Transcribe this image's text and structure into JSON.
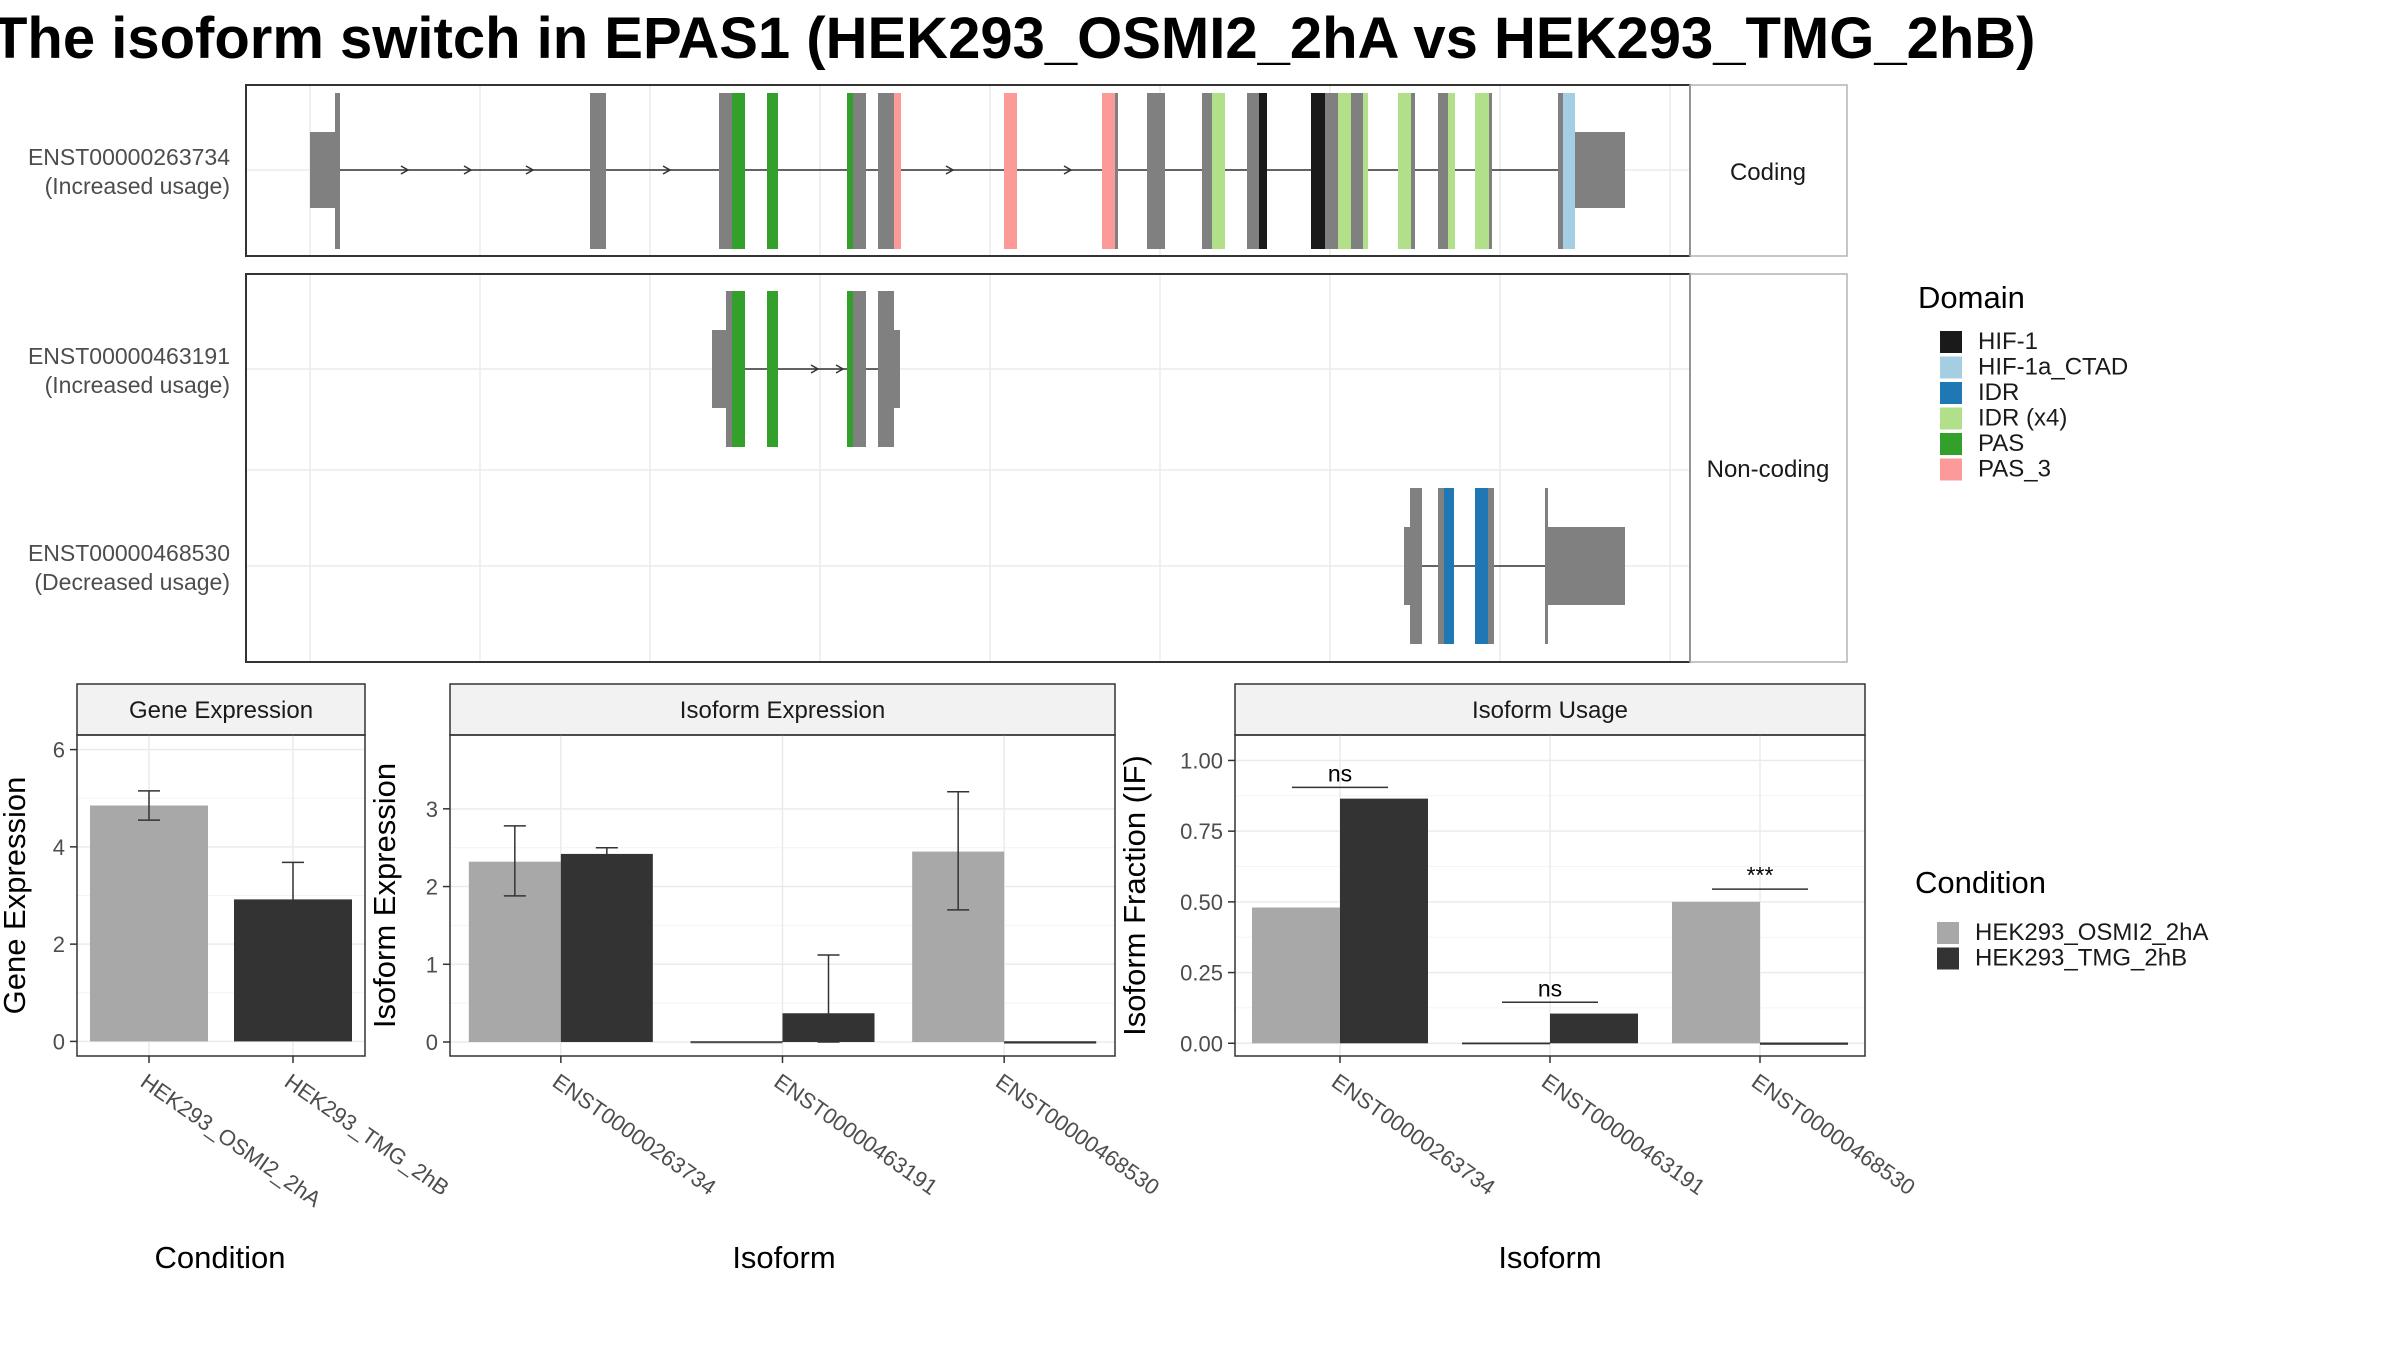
{
  "title": "The isoform switch in EPAS1 (HEK293_OSMI2_2hA vs HEK293_TMG_2hB)",
  "transcripts": [
    {
      "id": "ENST00000263734",
      "usage": "(Increased usage)"
    },
    {
      "id": "ENST00000463191",
      "usage": "(Increased usage)"
    },
    {
      "id": "ENST00000468530",
      "usage": "(Decreased usage)"
    }
  ],
  "facets": {
    "coding": "Coding",
    "noncoding": "Non-coding"
  },
  "domain_legend": {
    "title": "Domain",
    "items": [
      {
        "label": "HIF-1",
        "color": "#1a1a1a"
      },
      {
        "label": "HIF-1a_CTAD",
        "color": "#a6cee3"
      },
      {
        "label": "IDR",
        "color": "#1f78b4"
      },
      {
        "label": "IDR (x4)",
        "color": "#b2df8a"
      },
      {
        "label": "PAS",
        "color": "#33a02c"
      },
      {
        "label": "PAS_3",
        "color": "#fb9a99"
      }
    ]
  },
  "condition_legend": {
    "title": "Condition",
    "items": [
      {
        "label": "HEK293_OSMI2_2hA",
        "color": "#a8a8a8"
      },
      {
        "label": "HEK293_TMG_2hB",
        "color": "#333333"
      }
    ]
  },
  "chart_data": [
    {
      "type": "bar",
      "title": "Gene Expression",
      "xlabel": "Condition",
      "ylabel": "Gene Expression",
      "categories": [
        "HEK293_OSMI2_2hA",
        "HEK293_TMG_2hB"
      ],
      "values": [
        4.85,
        2.92
      ],
      "errors": [
        [
          4.55,
          5.15
        ],
        [
          2.15,
          3.68
        ]
      ],
      "yticks": [
        0,
        2,
        4,
        6
      ],
      "ylim": [
        -0.3,
        6.3
      ]
    },
    {
      "type": "bar",
      "title": "Isoform Expression",
      "xlabel": "Isoform",
      "ylabel": "Isoform Expression",
      "categories": [
        "ENST00000263734",
        "ENST00000463191",
        "ENST00000468530"
      ],
      "series": [
        {
          "name": "HEK293_OSMI2_2hA",
          "values": [
            2.32,
            0.0,
            2.45
          ],
          "errors": [
            [
              1.88,
              2.78
            ],
            [
              0,
              0
            ],
            [
              1.7,
              3.22
            ]
          ]
        },
        {
          "name": "HEK293_TMG_2hB",
          "values": [
            2.42,
            0.37,
            0.0
          ],
          "errors": [
            [
              2.35,
              2.5
            ],
            [
              0,
              1.12
            ],
            [
              0,
              0
            ]
          ]
        }
      ],
      "yticks": [
        0,
        1,
        2,
        3
      ],
      "ylim": [
        -0.18,
        3.95
      ]
    },
    {
      "type": "bar",
      "title": "Isoform Usage",
      "xlabel": "Isoform",
      "ylabel": "Isoform Fraction (IF)",
      "categories": [
        "ENST00000263734",
        "ENST00000463191",
        "ENST00000468530"
      ],
      "series": [
        {
          "name": "HEK293_OSMI2_2hA",
          "values": [
            0.48,
            0.0,
            0.5
          ]
        },
        {
          "name": "HEK293_TMG_2hB",
          "values": [
            0.865,
            0.105,
            0.0
          ]
        }
      ],
      "significance": [
        {
          "category": "ENST00000263734",
          "label": "ns",
          "y": 0.905
        },
        {
          "category": "ENST00000463191",
          "label": "ns",
          "y": 0.145
        },
        {
          "category": "ENST00000468530",
          "label": "***",
          "y": 0.545
        }
      ],
      "yticks": [
        0.0,
        0.25,
        0.5,
        0.75,
        1.0
      ],
      "ytick_labels": [
        "0.00",
        "0.25",
        "0.50",
        "0.75",
        "1.00"
      ],
      "ylim": [
        -0.045,
        1.09
      ]
    }
  ]
}
